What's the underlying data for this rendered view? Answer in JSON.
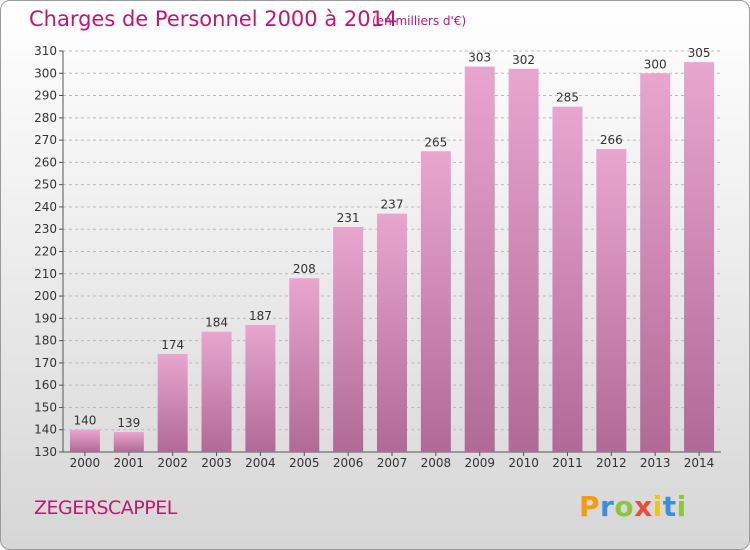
{
  "title": "Charges de Personnel 2000 à 2014",
  "subtitle": "(en milliers d'€)",
  "commune": "ZEGERSCAPPEL",
  "logo": {
    "letters": [
      "P",
      "r",
      "o",
      "x",
      "i",
      "t",
      "i"
    ],
    "colors": [
      "#f39c12",
      "#3b8fd9",
      "#8cc63f",
      "#e74c3c",
      "#f1c40f",
      "#3b8fd9",
      "#8cc63f"
    ]
  },
  "colors": {
    "accent": "#c0186e",
    "bar_top": "#e8a6cf",
    "bar_bottom": "#b06a95",
    "grid": "#bbbbbb"
  },
  "chart_data": {
    "type": "bar",
    "categories": [
      "2000",
      "2001",
      "2002",
      "2003",
      "2004",
      "2005",
      "2006",
      "2007",
      "2008",
      "2009",
      "2010",
      "2011",
      "2012",
      "2013",
      "2014"
    ],
    "values": [
      140,
      139,
      174,
      184,
      187,
      208,
      231,
      237,
      265,
      303,
      302,
      285,
      266,
      300,
      305
    ],
    "ylim": [
      130,
      310
    ],
    "yticks": [
      130,
      140,
      150,
      160,
      170,
      180,
      190,
      200,
      210,
      220,
      230,
      240,
      250,
      260,
      270,
      280,
      290,
      300,
      310
    ],
    "grid": true,
    "title": "Charges de Personnel 2000 à 2014",
    "xlabel": "",
    "ylabel": ""
  }
}
